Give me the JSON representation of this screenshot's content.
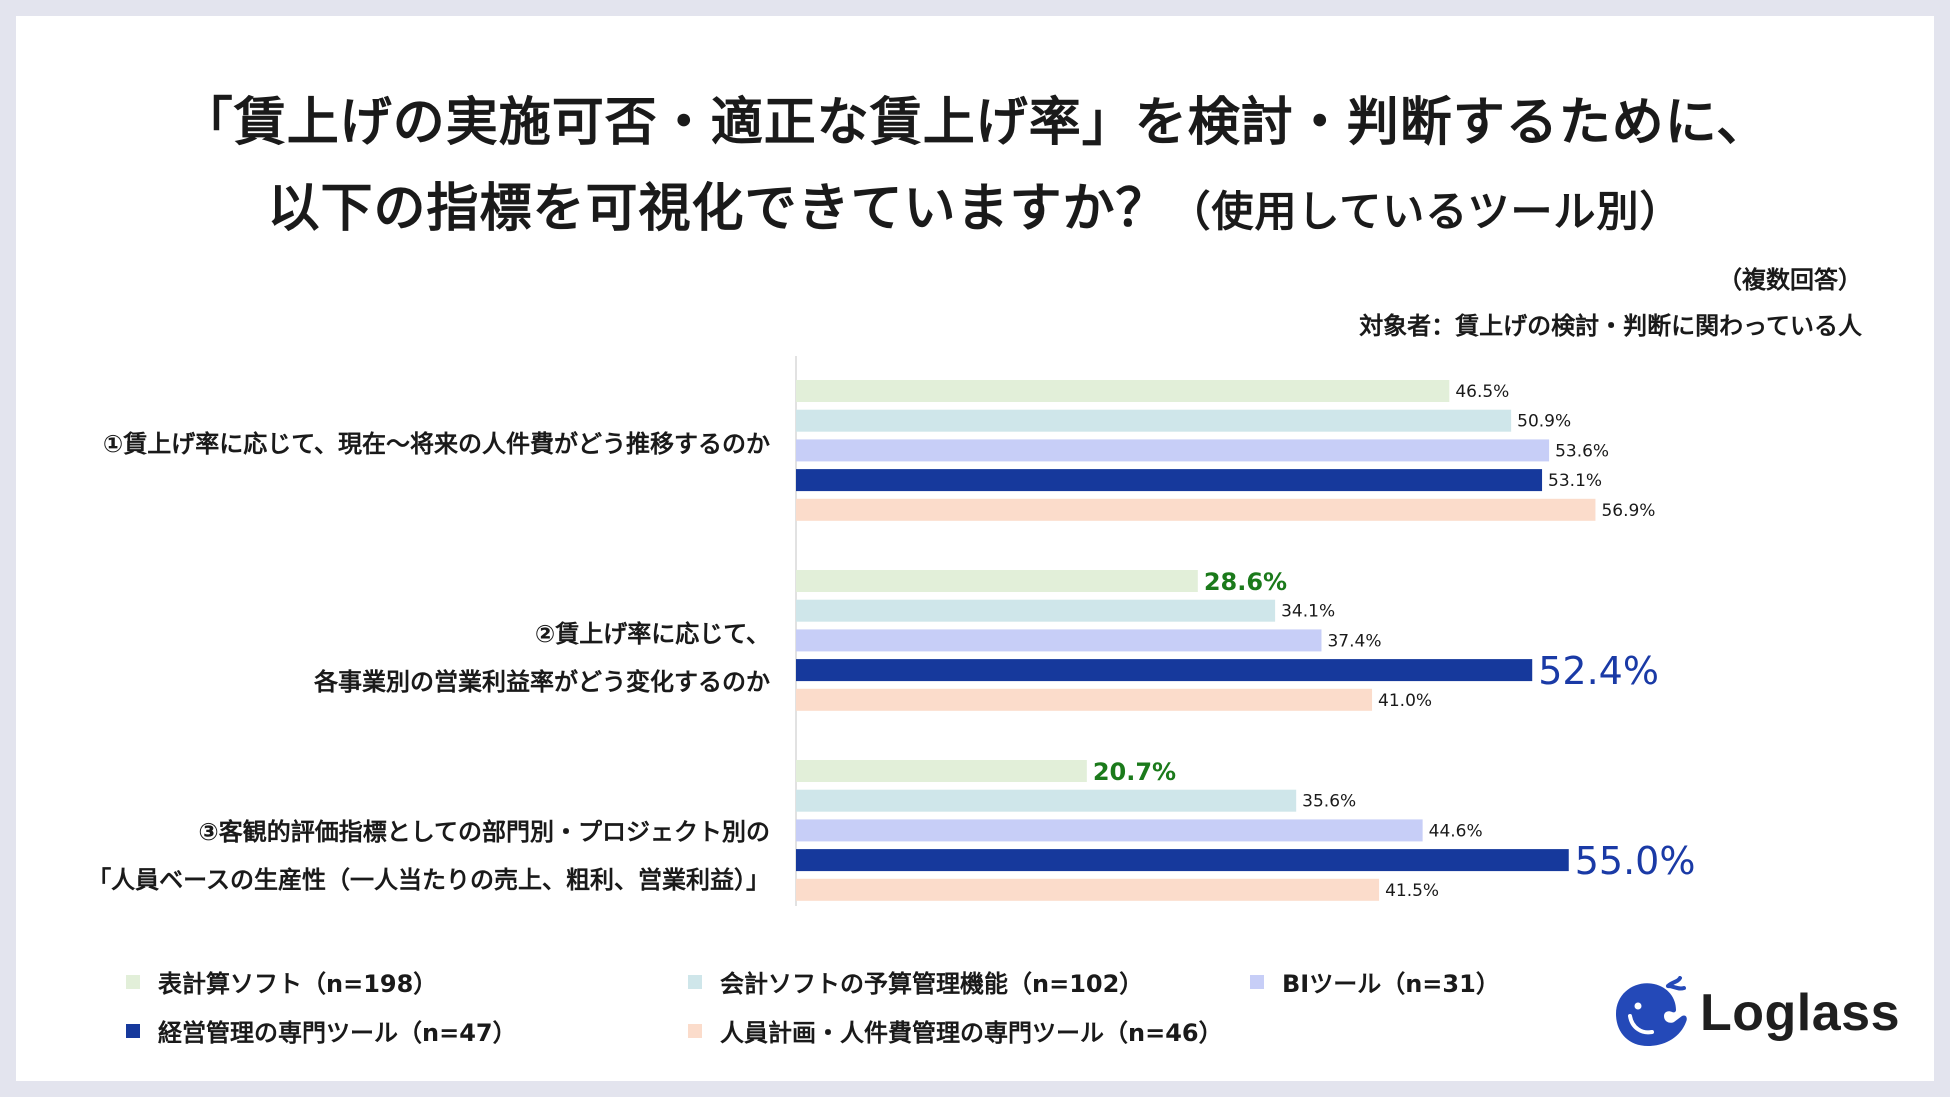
{
  "title": {
    "line1": "「賃上げの実施可否・適正な賃上げ率」を検討・判断するために、",
    "line2_main": "以下の指標を可視化できていますか？",
    "line2_sub": "（使用しているツール別）"
  },
  "notes": {
    "multiple": "（複数回答）",
    "target": "対象者：賃上げの検討・判断に関わっている人"
  },
  "brand": {
    "name": "Loglass"
  },
  "colors": {
    "s1": "#e2efd9",
    "s2": "#cfe6ea",
    "s3": "#c7cef7",
    "s4": "#16399c",
    "s5": "#fbdccb",
    "highlight_low": "#1b7a1b",
    "highlight_high": "#1a3aa6"
  },
  "chart_data": {
    "type": "bar",
    "orientation": "horizontal",
    "categories": [
      [
        "①賃上げ率に応じて、現在～将来の人件費がどう推移するのか"
      ],
      [
        "②賃上げ率に応じて、",
        "各事業別の営業利益率がどう変化するのか"
      ],
      [
        "③客観的評価指標としての部門別・プロジェクト別の",
        "「人員ベースの生産性（一人当たりの売上、粗利、営業利益）」"
      ]
    ],
    "series": [
      {
        "name": "表計算ソフト（n=198）",
        "values": [
          46.5,
          28.6,
          20.7
        ],
        "labels": [
          "46.5%",
          "28.6%",
          "20.7%"
        ]
      },
      {
        "name": "会計ソフトの予算管理機能（n=102）",
        "values": [
          50.9,
          34.1,
          35.6
        ],
        "labels": [
          "50.9%",
          "34.1%",
          "35.6%"
        ]
      },
      {
        "name": "BIツール（n=31）",
        "values": [
          53.6,
          37.4,
          44.6
        ],
        "labels": [
          "53.6%",
          "37.4%",
          "44.6%"
        ]
      },
      {
        "name": "経営管理の専門ツール（n=47）",
        "values": [
          53.1,
          52.4,
          55.0
        ],
        "labels": [
          "53.1%",
          "52.4%",
          "55.0%"
        ]
      },
      {
        "name": "人員計画・人件費管理の専門ツール（n=46）",
        "values": [
          56.9,
          41.0,
          41.5
        ],
        "labels": [
          "56.9%",
          "41.0%",
          "41.5%"
        ]
      }
    ],
    "highlights": [
      {
        "category": 1,
        "series": 0,
        "style": "low"
      },
      {
        "category": 2,
        "series": 0,
        "style": "low"
      },
      {
        "category": 1,
        "series": 3,
        "style": "high"
      },
      {
        "category": 2,
        "series": 3,
        "style": "high"
      }
    ],
    "xlim": [
      0,
      100
    ],
    "grid": false,
    "legend_placement": "bottom"
  }
}
